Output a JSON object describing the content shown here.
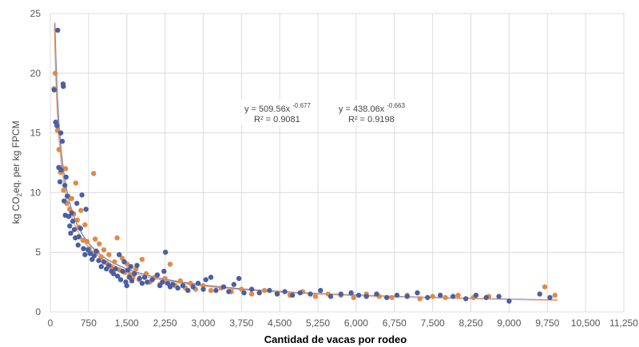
{
  "chart_data": {
    "type": "scatter",
    "title": "",
    "xlabel": "Cantidad de vacas por rodeo",
    "ylabel_main": "kg CO",
    "ylabel_sub": "2",
    "ylabel_rest": "eq. per kg FPCM",
    "xlim": [
      0,
      11250
    ],
    "ylim": [
      0,
      25
    ],
    "x_ticks": [
      0,
      750,
      1500,
      2250,
      3000,
      3750,
      4500,
      5250,
      6000,
      6750,
      7500,
      8250,
      9000,
      9750,
      10500,
      11250
    ],
    "x_tick_labels": [
      "0",
      "750",
      "1,500",
      "2,250",
      "3,000",
      "3,750",
      "4,500",
      "5,250",
      "6,000",
      "6,750",
      "7,500",
      "8,250",
      "9,000",
      "9,750",
      "10,500",
      "11,250"
    ],
    "y_ticks": [
      0,
      5,
      10,
      15,
      20,
      25
    ],
    "y_tick_labels": [
      "0",
      "5",
      "10",
      "15",
      "20",
      "25"
    ],
    "grid": true,
    "series": [
      {
        "color": "#4a5fa3",
        "trend_color": "#6a7fb8",
        "equation": {
          "prefix": "y = 509.56x ",
          "exponent": "-0.677",
          "r2": "R² = 0.9081"
        },
        "fit": {
          "a": 509.56,
          "b": -0.677
        },
        "points": [
          [
            75,
            18.6
          ],
          [
            105,
            15.9
          ],
          [
            130,
            15.6
          ],
          [
            145,
            23.6
          ],
          [
            165,
            12.1
          ],
          [
            190,
            10.9
          ],
          [
            205,
            15.0
          ],
          [
            210,
            11.9
          ],
          [
            235,
            14.3
          ],
          [
            250,
            19.1
          ],
          [
            255,
            18.9
          ],
          [
            270,
            9.3
          ],
          [
            285,
            10.6
          ],
          [
            295,
            8.1
          ],
          [
            310,
            11.3
          ],
          [
            330,
            9.7
          ],
          [
            360,
            8.0
          ],
          [
            380,
            7.2
          ],
          [
            400,
            6.6
          ],
          [
            420,
            8.3
          ],
          [
            440,
            7.6
          ],
          [
            470,
            6.9
          ],
          [
            490,
            6.2
          ],
          [
            520,
            9.1
          ],
          [
            545,
            5.6
          ],
          [
            560,
            6.3
          ],
          [
            590,
            7.0
          ],
          [
            620,
            9.8
          ],
          [
            650,
            5.3
          ],
          [
            680,
            4.8
          ],
          [
            700,
            8.6
          ],
          [
            740,
            5.2
          ],
          [
            780,
            4.9
          ],
          [
            820,
            4.4
          ],
          [
            860,
            4.7
          ],
          [
            900,
            5.1
          ],
          [
            950,
            4.3
          ],
          [
            1000,
            3.8
          ],
          [
            1050,
            4.2
          ],
          [
            1100,
            3.6
          ],
          [
            1150,
            3.9
          ],
          [
            1200,
            3.4
          ],
          [
            1240,
            3.2
          ],
          [
            1280,
            3.6
          ],
          [
            1320,
            3.0
          ],
          [
            1350,
            4.8
          ],
          [
            1380,
            2.7
          ],
          [
            1420,
            3.4
          ],
          [
            1450,
            4.2
          ],
          [
            1480,
            2.5
          ],
          [
            1500,
            2.2
          ],
          [
            1520,
            3.5
          ],
          [
            1550,
            2.9
          ],
          [
            1580,
            3.8
          ],
          [
            1600,
            2.6
          ],
          [
            1650,
            3.2
          ],
          [
            1700,
            3.9
          ],
          [
            1750,
            2.8
          ],
          [
            1800,
            2.4
          ],
          [
            1850,
            2.9
          ],
          [
            1900,
            2.5
          ],
          [
            2000,
            2.7
          ],
          [
            2100,
            3.1
          ],
          [
            2150,
            2.2
          ],
          [
            2200,
            2.5
          ],
          [
            2230,
            3.4
          ],
          [
            2260,
            5.0
          ],
          [
            2300,
            2.4
          ],
          [
            2350,
            2.1
          ],
          [
            2400,
            2.3
          ],
          [
            2500,
            2.0
          ],
          [
            2600,
            2.2
          ],
          [
            2700,
            1.8
          ],
          [
            2800,
            2.1
          ],
          [
            2900,
            2.4
          ],
          [
            3000,
            1.9
          ],
          [
            3050,
            2.7
          ],
          [
            3150,
            2.9
          ],
          [
            3250,
            1.8
          ],
          [
            3400,
            2.1
          ],
          [
            3500,
            1.7
          ],
          [
            3600,
            2.3
          ],
          [
            3700,
            2.8
          ],
          [
            3800,
            1.6
          ],
          [
            3950,
            1.9
          ],
          [
            4100,
            1.6
          ],
          [
            4300,
            1.8
          ],
          [
            4450,
            1.5
          ],
          [
            4600,
            1.7
          ],
          [
            4750,
            1.4
          ],
          [
            4900,
            1.6
          ],
          [
            5100,
            1.5
          ],
          [
            5300,
            1.8
          ],
          [
            5500,
            1.3
          ],
          [
            5700,
            1.5
          ],
          [
            5900,
            1.6
          ],
          [
            6050,
            1.4
          ],
          [
            6200,
            1.3
          ],
          [
            6400,
            1.5
          ],
          [
            6600,
            1.2
          ],
          [
            6800,
            1.4
          ],
          [
            7000,
            1.3
          ],
          [
            7200,
            1.6
          ],
          [
            7400,
            1.2
          ],
          [
            7650,
            1.4
          ],
          [
            7900,
            1.3
          ],
          [
            8150,
            1.1
          ],
          [
            8350,
            1.4
          ],
          [
            8550,
            1.2
          ],
          [
            8800,
            1.3
          ],
          [
            9000,
            0.9
          ],
          [
            9600,
            1.5
          ],
          [
            9800,
            1.2
          ]
        ]
      },
      {
        "color": "#e08a4a",
        "trend_color": "#e8a070",
        "equation": {
          "prefix": "y = 438.06x ",
          "exponent": "-0.663",
          "r2": "R² = 0.9198"
        },
        "fit": {
          "a": 438.06,
          "b": -0.663
        },
        "points": [
          [
            70,
            18.7
          ],
          [
            95,
            20.0
          ],
          [
            140,
            15.2
          ],
          [
            170,
            13.6
          ],
          [
            200,
            11.7
          ],
          [
            230,
            12.1
          ],
          [
            260,
            10.2
          ],
          [
            300,
            12.0
          ],
          [
            320,
            9.1
          ],
          [
            350,
            9.7
          ],
          [
            380,
            8.6
          ],
          [
            420,
            9.5
          ],
          [
            460,
            8.2
          ],
          [
            500,
            10.8
          ],
          [
            530,
            7.7
          ],
          [
            560,
            7.1
          ],
          [
            600,
            8.5
          ],
          [
            640,
            6.0
          ],
          [
            680,
            7.3
          ],
          [
            720,
            5.9
          ],
          [
            760,
            5.3
          ],
          [
            800,
            4.9
          ],
          [
            850,
            11.6
          ],
          [
            880,
            6.1
          ],
          [
            920,
            5.0
          ],
          [
            960,
            5.7
          ],
          [
            1000,
            4.6
          ],
          [
            1050,
            5.2
          ],
          [
            1100,
            4.1
          ],
          [
            1150,
            4.8
          ],
          [
            1200,
            3.7
          ],
          [
            1260,
            4.2
          ],
          [
            1310,
            6.2
          ],
          [
            1360,
            3.5
          ],
          [
            1410,
            4.5
          ],
          [
            1460,
            3.3
          ],
          [
            1510,
            4.0
          ],
          [
            1560,
            3.1
          ],
          [
            1620,
            2.9
          ],
          [
            1680,
            3.6
          ],
          [
            1740,
            2.7
          ],
          [
            1800,
            4.4
          ],
          [
            1880,
            3.2
          ],
          [
            1950,
            2.5
          ],
          [
            2050,
            2.9
          ],
          [
            2150,
            2.3
          ],
          [
            2250,
            2.8
          ],
          [
            2350,
            4.0
          ],
          [
            2450,
            2.2
          ],
          [
            2550,
            2.6
          ],
          [
            2650,
            2.0
          ],
          [
            2750,
            2.4
          ],
          [
            2850,
            1.9
          ],
          [
            3000,
            2.2
          ],
          [
            3150,
            1.8
          ],
          [
            3350,
            2.0
          ],
          [
            3550,
            1.7
          ],
          [
            3750,
            1.9
          ],
          [
            3950,
            1.5
          ],
          [
            4200,
            1.8
          ],
          [
            4450,
            1.6
          ],
          [
            4700,
            1.4
          ],
          [
            4950,
            1.7
          ],
          [
            5200,
            1.3
          ],
          [
            5450,
            1.5
          ],
          [
            5700,
            1.4
          ],
          [
            5950,
            1.2
          ],
          [
            6200,
            1.5
          ],
          [
            6450,
            1.3
          ],
          [
            6700,
            1.2
          ],
          [
            7000,
            1.4
          ],
          [
            7250,
            1.1
          ],
          [
            7500,
            1.3
          ],
          [
            7750,
            1.2
          ],
          [
            8000,
            1.4
          ],
          [
            8300,
            1.2
          ],
          [
            8600,
            1.3
          ],
          [
            9700,
            2.1
          ],
          [
            9900,
            1.4
          ]
        ]
      }
    ]
  }
}
